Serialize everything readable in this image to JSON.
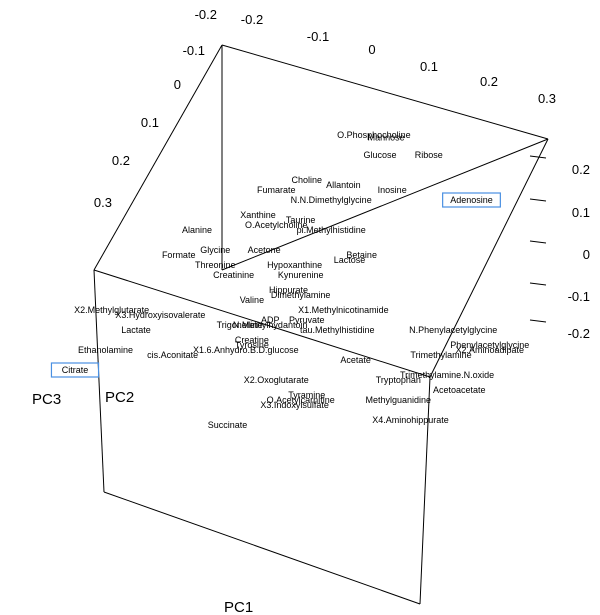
{
  "chart_data": {
    "type": "scatter",
    "title": "",
    "axes": {
      "x": {
        "label": "PC1",
        "ticks": [
          "-0.2",
          "-0.1",
          "0",
          "0.1",
          "0.2",
          "0.3"
        ]
      },
      "y": {
        "label": "PC2",
        "ticks": [
          "-0.2",
          "-0.1",
          "0",
          "0.1",
          "0.2",
          "0.3"
        ]
      },
      "z": {
        "label": "PC3",
        "ticks": [
          "0.2",
          "0.1",
          "0",
          "-0.1",
          "-0.2"
        ]
      }
    },
    "highlighted": [
      "Adenosine",
      "Citrate"
    ],
    "points": [
      {
        "label": "O.Phosphocholine",
        "x": 0.09,
        "y": 0.29
      },
      {
        "label": "Mannose",
        "x": 0.11,
        "y": 0.285
      },
      {
        "label": "Glucose",
        "x": 0.1,
        "y": 0.25
      },
      {
        "label": "Ribose",
        "x": 0.18,
        "y": 0.25
      },
      {
        "label": "Choline",
        "x": -0.02,
        "y": 0.2
      },
      {
        "label": "Allantoin",
        "x": 0.04,
        "y": 0.19
      },
      {
        "label": "Inosine",
        "x": 0.12,
        "y": 0.18
      },
      {
        "label": "Adenosine",
        "x": 0.25,
        "y": 0.16
      },
      {
        "label": "Fumarate",
        "x": -0.07,
        "y": 0.18
      },
      {
        "label": "N.N.Dimethylglycine",
        "x": 0.02,
        "y": 0.16
      },
      {
        "label": "Xanthine",
        "x": -0.1,
        "y": 0.13
      },
      {
        "label": "O.Acetylcholine",
        "x": -0.07,
        "y": 0.11
      },
      {
        "label": "Taurine",
        "x": -0.03,
        "y": 0.12
      },
      {
        "label": "pi.Methylhistidine",
        "x": 0.02,
        "y": 0.1
      },
      {
        "label": "Alanine",
        "x": -0.2,
        "y": 0.1
      },
      {
        "label": "Glycine",
        "x": -0.17,
        "y": 0.06
      },
      {
        "label": "Formate",
        "x": -0.23,
        "y": 0.05
      },
      {
        "label": "Acetone",
        "x": -0.09,
        "y": 0.06
      },
      {
        "label": "Betaine",
        "x": 0.07,
        "y": 0.05
      },
      {
        "label": "Lactose",
        "x": 0.05,
        "y": 0.04
      },
      {
        "label": "Threonine",
        "x": -0.17,
        "y": 0.03
      },
      {
        "label": "Hypoxanthine",
        "x": -0.04,
        "y": 0.03
      },
      {
        "label": "Creatinine",
        "x": -0.14,
        "y": 0.01
      },
      {
        "label": "Kynurenine",
        "x": -0.03,
        "y": 0.01
      },
      {
        "label": "Hippurate",
        "x": -0.05,
        "y": -0.02
      },
      {
        "label": "Dimethylamine",
        "x": -0.03,
        "y": -0.03
      },
      {
        "label": "Valine",
        "x": -0.11,
        "y": -0.04
      },
      {
        "label": "X2.Methylglutarate",
        "x": -0.34,
        "y": -0.06
      },
      {
        "label": "X3.Hydroxyisovalerate",
        "x": -0.26,
        "y": -0.07
      },
      {
        "label": "X1.Methylnicotinamide",
        "x": 0.04,
        "y": -0.06
      },
      {
        "label": "Trigonelline",
        "x": -0.13,
        "y": -0.09
      },
      {
        "label": "ADP",
        "x": -0.08,
        "y": -0.08
      },
      {
        "label": "Pyruvate",
        "x": -0.02,
        "y": -0.08
      },
      {
        "label": "N.Methylhydantoin",
        "x": -0.08,
        "y": -0.09
      },
      {
        "label": "tau.Methylhistidine",
        "x": 0.03,
        "y": -0.1
      },
      {
        "label": "N.Phenylacetylglycine",
        "x": 0.22,
        "y": -0.1
      },
      {
        "label": "Lactate",
        "x": -0.3,
        "y": -0.1
      },
      {
        "label": "Creatine",
        "x": -0.11,
        "y": -0.12
      },
      {
        "label": "Tyrosine",
        "x": -0.11,
        "y": -0.13
      },
      {
        "label": "Phenylacetylglycine",
        "x": 0.28,
        "y": -0.13
      },
      {
        "label": "X2.Aminoadipate",
        "x": 0.28,
        "y": -0.14
      },
      {
        "label": "X1.6.Anhydro.B.D.glucose",
        "x": -0.12,
        "y": -0.14
      },
      {
        "label": "Ethanolamine",
        "x": -0.35,
        "y": -0.14
      },
      {
        "label": "cis.Aconitate",
        "x": -0.24,
        "y": -0.15
      },
      {
        "label": "Trimethylamine",
        "x": 0.2,
        "y": -0.15
      },
      {
        "label": "Acetate",
        "x": 0.06,
        "y": -0.16
      },
      {
        "label": "Citrate",
        "x": -0.4,
        "y": -0.18
      },
      {
        "label": "Trimethylamine.N.oxide",
        "x": 0.21,
        "y": -0.19
      },
      {
        "label": "X2.Oxoglutarate",
        "x": -0.07,
        "y": -0.2
      },
      {
        "label": "Tryptophan",
        "x": 0.13,
        "y": -0.2
      },
      {
        "label": "Acetoacetate",
        "x": 0.23,
        "y": -0.22
      },
      {
        "label": "Tyramine",
        "x": -0.02,
        "y": -0.23
      },
      {
        "label": "O.Acetylcarnitine",
        "x": -0.03,
        "y": -0.24
      },
      {
        "label": "X3.Indoxylsulfate",
        "x": -0.04,
        "y": -0.25
      },
      {
        "label": "Methylguanidine",
        "x": 0.13,
        "y": -0.24
      },
      {
        "label": "X4.Aminohippurate",
        "x": 0.15,
        "y": -0.28
      },
      {
        "label": "Succinate",
        "x": -0.15,
        "y": -0.29
      }
    ]
  }
}
